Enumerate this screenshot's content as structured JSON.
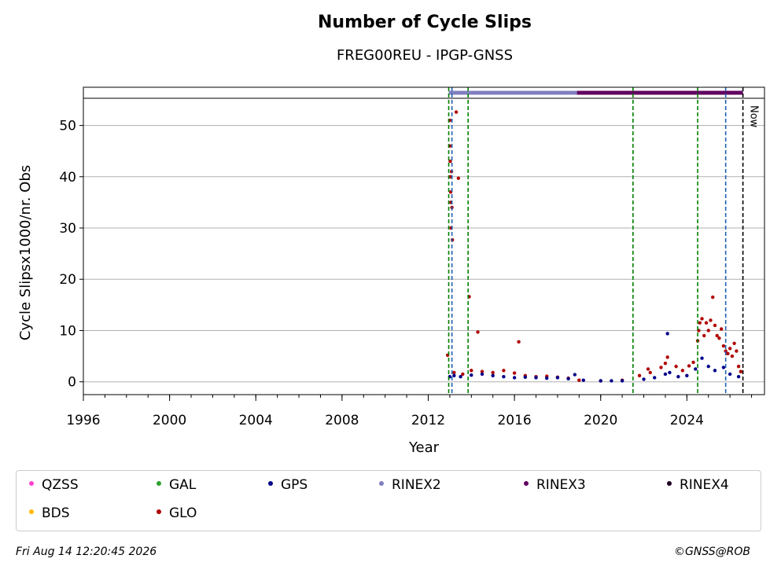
{
  "chart_data": {
    "type": "scatter",
    "title": "Number of Cycle Slips",
    "subtitle": "FREG00REU - IPGP-GNSS",
    "xlabel": "Year",
    "ylabel": "Cycle Slipsx1000/nr. Obs",
    "xlim": [
      1996,
      2027.6
    ],
    "ylim": [
      -2.5,
      55.3
    ],
    "xticks": [
      "1996",
      "2000",
      "2004",
      "2008",
      "2012",
      "2016",
      "2020",
      "2024"
    ],
    "xtick_values": [
      1996,
      2000,
      2004,
      2008,
      2012,
      2016,
      2020,
      2024
    ],
    "yticks": [
      "0",
      "10",
      "20",
      "30",
      "40",
      "50"
    ],
    "ytick_values": [
      0,
      10,
      20,
      30,
      40,
      50
    ],
    "grid": "horizontal",
    "now_label": "Now",
    "vlines": [
      {
        "x": 2012.95,
        "color": "#008000"
      },
      {
        "x": 2013.1,
        "color": "#1f5fb0"
      },
      {
        "x": 2013.85,
        "color": "#008000"
      },
      {
        "x": 2021.5,
        "color": "#008000"
      },
      {
        "x": 2024.5,
        "color": "#008000"
      },
      {
        "x": 2025.8,
        "color": "#1f5fb0"
      },
      {
        "x": 2026.6,
        "color": "#000000"
      }
    ],
    "rinex_bar": [
      {
        "name": "RINEX2",
        "from": 2012.95,
        "to": 2018.9,
        "color": "#8080c0"
      },
      {
        "name": "RINEX3",
        "from": 2018.9,
        "to": 2026.6,
        "color": "#600060"
      }
    ],
    "series": [
      {
        "name": "GLO",
        "color": "#b00000",
        "points": [
          [
            2012.9,
            5.2
          ],
          [
            2013.0,
            51
          ],
          [
            2013.0,
            46
          ],
          [
            2013.02,
            43
          ],
          [
            2013.03,
            40
          ],
          [
            2013.04,
            37
          ],
          [
            2013.05,
            35
          ],
          [
            2013.06,
            30
          ],
          [
            2013.08,
            41
          ],
          [
            2013.1,
            34
          ],
          [
            2013.12,
            27.7
          ],
          [
            2013.3,
            52.6
          ],
          [
            2013.4,
            39.7
          ],
          [
            2013.9,
            16.6
          ],
          [
            2014.3,
            9.7
          ],
          [
            2016.2,
            7.8
          ],
          [
            2013.2,
            1.8
          ],
          [
            2013.6,
            1.5
          ],
          [
            2014.0,
            2.2
          ],
          [
            2014.5,
            2.0
          ],
          [
            2015.0,
            1.8
          ],
          [
            2015.5,
            2.2
          ],
          [
            2016.0,
            1.7
          ],
          [
            2016.5,
            1.2
          ],
          [
            2017.0,
            1.0
          ],
          [
            2017.5,
            1.1
          ],
          [
            2018.0,
            0.9
          ],
          [
            2018.5,
            0.7
          ],
          [
            2019.0,
            0.3
          ],
          [
            2020.0,
            0.2
          ],
          [
            2021.0,
            0.3
          ],
          [
            2021.8,
            1.2
          ],
          [
            2022.2,
            2.5
          ],
          [
            2022.3,
            1.8
          ],
          [
            2022.8,
            2.8
          ],
          [
            2023.0,
            3.6
          ],
          [
            2023.1,
            4.8
          ],
          [
            2023.5,
            3.0
          ],
          [
            2023.8,
            2.2
          ],
          [
            2024.1,
            3.1
          ],
          [
            2024.3,
            3.8
          ],
          [
            2024.5,
            8
          ],
          [
            2024.55,
            10
          ],
          [
            2024.6,
            11.5
          ],
          [
            2024.7,
            12.3
          ],
          [
            2024.8,
            9
          ],
          [
            2024.9,
            11.5
          ],
          [
            2025.0,
            10
          ],
          [
            2025.1,
            12
          ],
          [
            2025.2,
            16.5
          ],
          [
            2025.3,
            11
          ],
          [
            2025.4,
            9
          ],
          [
            2025.5,
            8.5
          ],
          [
            2025.6,
            10.3
          ],
          [
            2025.7,
            7
          ],
          [
            2025.8,
            6
          ],
          [
            2025.9,
            5.5
          ],
          [
            2026.0,
            6.5
          ],
          [
            2026.1,
            5
          ],
          [
            2026.2,
            7.5
          ],
          [
            2026.3,
            6
          ],
          [
            2026.4,
            3
          ],
          [
            2026.5,
            2
          ]
        ]
      },
      {
        "name": "GPS",
        "color": "#00008b",
        "points": [
          [
            2013.0,
            1.0
          ],
          [
            2013.2,
            1.2
          ],
          [
            2013.5,
            1.0
          ],
          [
            2014.0,
            1.3
          ],
          [
            2014.5,
            1.5
          ],
          [
            2015.0,
            1.2
          ],
          [
            2015.5,
            1.0
          ],
          [
            2016.0,
            0.8
          ],
          [
            2016.5,
            0.9
          ],
          [
            2017.0,
            0.8
          ],
          [
            2017.5,
            0.7
          ],
          [
            2018.0,
            0.8
          ],
          [
            2018.5,
            0.6
          ],
          [
            2018.8,
            1.4
          ],
          [
            2019.2,
            0.3
          ],
          [
            2020.0,
            0.2
          ],
          [
            2020.5,
            0.2
          ],
          [
            2021.0,
            0.2
          ],
          [
            2022.0,
            0.5
          ],
          [
            2022.5,
            0.8
          ],
          [
            2023.0,
            1.5
          ],
          [
            2023.1,
            9.4
          ],
          [
            2023.2,
            1.8
          ],
          [
            2023.6,
            1.0
          ],
          [
            2024.0,
            1.2
          ],
          [
            2024.4,
            2.5
          ],
          [
            2024.7,
            4.6
          ],
          [
            2025.0,
            3.0
          ],
          [
            2025.3,
            2.2
          ],
          [
            2025.7,
            2.8
          ],
          [
            2026.0,
            1.5
          ],
          [
            2026.4,
            1.0
          ]
        ]
      }
    ]
  },
  "legend": {
    "items": [
      {
        "label": "QZSS",
        "color": "#ff44cc"
      },
      {
        "label": "GAL",
        "color": "#2ca02c"
      },
      {
        "label": "GPS",
        "color": "#00008b"
      },
      {
        "label": "RINEX2",
        "color": "#8080c0"
      },
      {
        "label": "RINEX3",
        "color": "#600060"
      },
      {
        "label": "RINEX4",
        "color": "#200020"
      },
      {
        "label": "BDS",
        "color": "#ffbb00"
      },
      {
        "label": "GLO",
        "color": "#b00000"
      }
    ]
  },
  "footer": {
    "date": "Fri Aug 14 12:20:45 2026",
    "copyright": "©GNSS@ROB"
  }
}
